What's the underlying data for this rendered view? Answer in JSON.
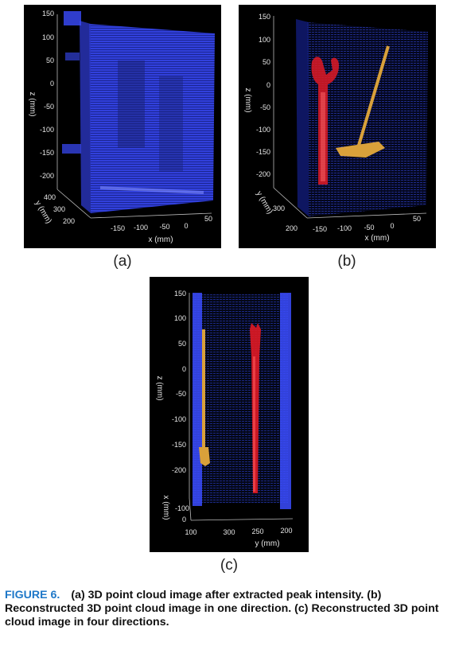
{
  "colors": {
    "blue_cloud": "#3b4cff",
    "red_object": "#e01a24",
    "orange_object": "#d9a13a",
    "caption_label": "#1f78c8"
  },
  "panels": {
    "a": {
      "label": "(a)",
      "z_ticks": [
        "150",
        "100",
        "50",
        "0",
        "-50",
        "-100",
        "-150",
        "-200"
      ],
      "y_ticks": [
        "400",
        "300",
        "200"
      ],
      "x_ticks": [
        "-150",
        "-100",
        "-50",
        "0",
        "50"
      ],
      "z_label": "z (mm)",
      "y_label": "y (mm)",
      "x_label": "x (mm)"
    },
    "b": {
      "label": "(b)",
      "z_ticks": [
        "150",
        "100",
        "50",
        "0",
        "-50",
        "-100",
        "-150",
        "-200"
      ],
      "y_ticks": [
        "300",
        "200"
      ],
      "x_ticks": [
        "-150",
        "-100",
        "-50",
        "0",
        "50"
      ],
      "z_label": "z (mm)",
      "y_label": "y (mm)",
      "x_label": "x (mm)"
    },
    "c": {
      "label": "(c)",
      "z_ticks": [
        "150",
        "100",
        "50",
        "0",
        "-50",
        "-100",
        "-150",
        "-200"
      ],
      "x_ticks": [
        "-100",
        "0",
        "100"
      ],
      "y_ticks": [
        "300",
        "250",
        "200"
      ],
      "z_label": "z (mm)",
      "x_label": "x (mm)",
      "y_label": "y (mm)"
    }
  },
  "caption": {
    "figure_label": "FIGURE 6.",
    "text": "(a) 3D point cloud image after extracted peak intensity. (b) Reconstructed 3D point cloud image in one direction. (c) Reconstructed 3D point cloud image in four directions."
  }
}
